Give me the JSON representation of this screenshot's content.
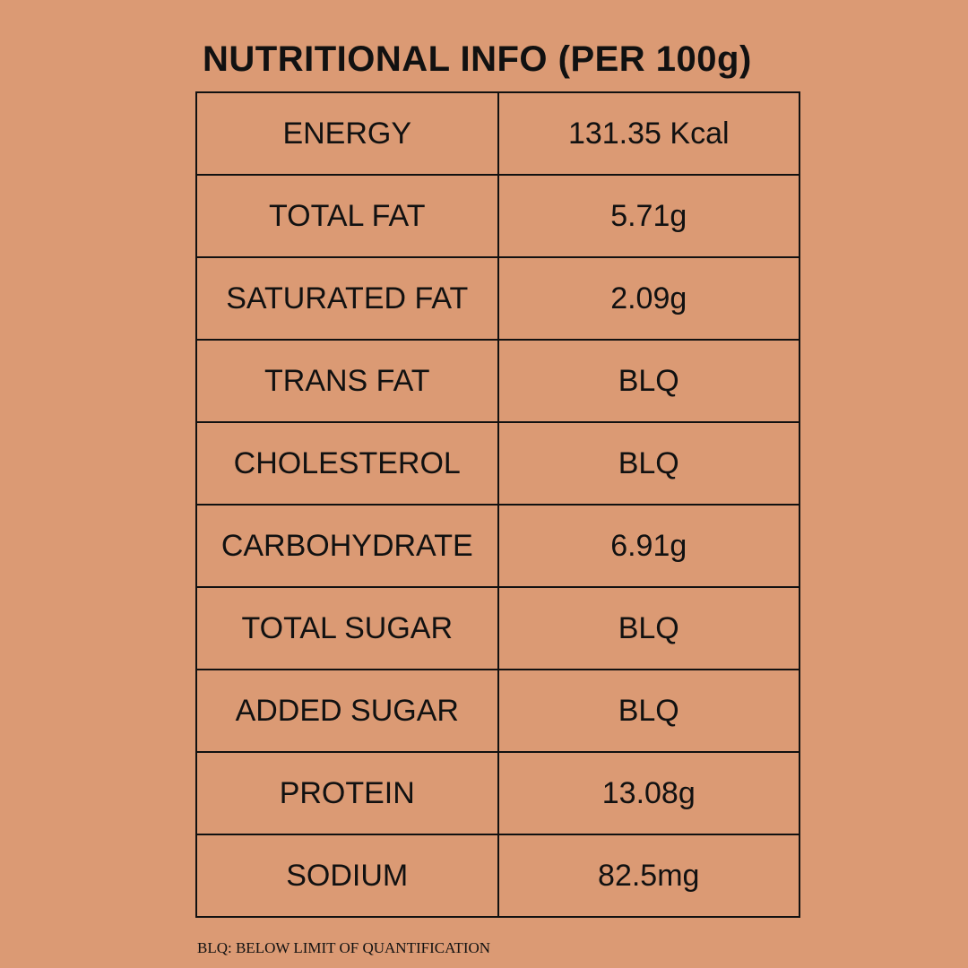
{
  "header": {
    "title": "NUTRITIONAL INFO (PER 100g)"
  },
  "table": {
    "rows": [
      [
        "ENERGY",
        "131.35 Kcal"
      ],
      [
        "TOTAL FAT",
        "5.71g"
      ],
      [
        "SATURATED FAT",
        "2.09g"
      ],
      [
        "TRANS FAT",
        "BLQ"
      ],
      [
        "CHOLESTEROL",
        "BLQ"
      ],
      [
        "CARBOHYDRATE",
        "6.91g"
      ],
      [
        "TOTAL SUGAR",
        "BLQ"
      ],
      [
        "ADDED SUGAR",
        "BLQ"
      ],
      [
        "PROTEIN",
        "13.08g"
      ],
      [
        "SODIUM",
        "82.5mg"
      ]
    ]
  },
  "footnote": "BLQ: BELOW LIMIT OF QUANTIFICATION"
}
